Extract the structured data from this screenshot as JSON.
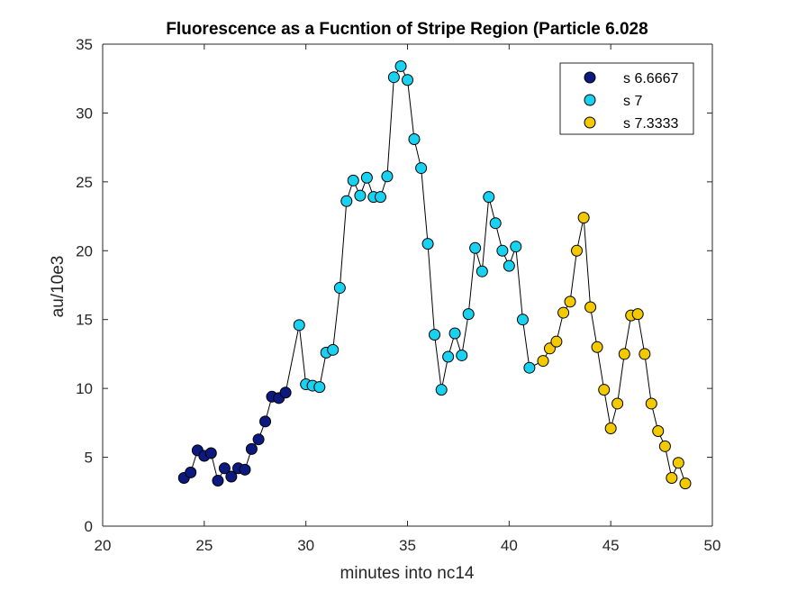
{
  "chart_data": {
    "type": "scatter",
    "title": "Fluorescence as a Fucntion of Stripe Region (Particle 6.028",
    "xlabel": "minutes into nc14",
    "ylabel": "au/10e3",
    "xlim": [
      20,
      50
    ],
    "ylim": [
      0,
      35
    ],
    "xticks": [
      20,
      25,
      30,
      35,
      40,
      45,
      50
    ],
    "yticks": [
      0,
      5,
      10,
      15,
      20,
      25,
      30,
      35
    ],
    "grid": false,
    "legend_position": "top-right",
    "connecting_line_color": "#000000",
    "series": [
      {
        "name": "s 6.6667",
        "color": "#0c1a80",
        "x": [
          24.0,
          24.33,
          24.67,
          25.0,
          25.33,
          25.67,
          26.0,
          26.33,
          26.67,
          27.0,
          27.33,
          27.67,
          28.0,
          28.33,
          28.67,
          29.0
        ],
        "y": [
          3.5,
          3.9,
          5.5,
          5.1,
          5.3,
          3.3,
          4.2,
          3.6,
          4.2,
          4.1,
          5.6,
          6.3,
          7.6,
          9.4,
          9.3,
          9.7
        ]
      },
      {
        "name": "s 7",
        "color": "#19d1f0",
        "x": [
          29.67,
          30.0,
          30.33,
          30.67,
          31.0,
          31.33,
          31.67,
          32.0,
          32.33,
          32.67,
          33.0,
          33.33,
          33.67,
          34.0,
          34.33,
          34.67,
          35.0,
          35.33,
          35.67,
          36.0,
          36.33,
          36.67,
          37.0,
          37.33,
          37.67,
          38.0,
          38.33,
          38.67,
          39.0,
          39.33,
          39.67,
          40.0,
          40.33,
          40.67,
          41.0
        ],
        "y": [
          14.6,
          10.3,
          10.2,
          10.1,
          12.6,
          12.8,
          17.3,
          23.6,
          25.1,
          24.0,
          25.3,
          23.9,
          23.9,
          25.4,
          32.6,
          33.4,
          32.4,
          28.1,
          26.0,
          20.5,
          13.9,
          9.9,
          12.3,
          14.0,
          12.4,
          15.4,
          20.2,
          18.5,
          23.9,
          22.0,
          20.0,
          18.9,
          20.3,
          15.0,
          11.5
        ]
      },
      {
        "name": "s 7.3333",
        "color": "#f3c900",
        "x": [
          41.67,
          42.0,
          42.33,
          42.67,
          43.0,
          43.33,
          43.67,
          44.0,
          44.33,
          44.67,
          45.0,
          45.33,
          45.67,
          46.0,
          46.33,
          46.67,
          47.0,
          47.33,
          47.67,
          48.0,
          48.33,
          48.67
        ],
        "y": [
          12.0,
          12.9,
          13.4,
          15.5,
          16.3,
          20.0,
          22.4,
          15.9,
          13.0,
          9.9,
          7.1,
          8.9,
          12.5,
          15.3,
          15.4,
          12.5,
          8.9,
          6.9,
          5.8,
          3.5,
          4.6,
          3.1
        ]
      }
    ]
  }
}
